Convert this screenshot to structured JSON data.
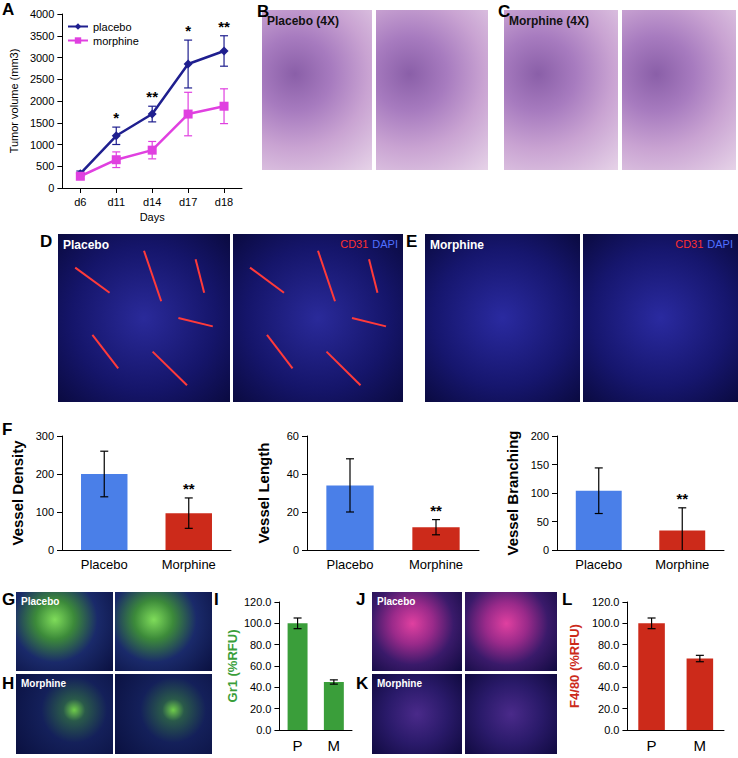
{
  "chart_data": [
    {
      "panel": "A",
      "type": "line",
      "xlabel": "Days",
      "ylabel": "Tumor volume (mm3)",
      "categories": [
        "d6",
        "d11",
        "d14",
        "d17",
        "d18"
      ],
      "series": [
        {
          "name": "placebo",
          "color": "#1f1f8f",
          "marker": "diamond",
          "values": [
            330,
            1200,
            1700,
            2850,
            3150
          ],
          "errors": [
            60,
            200,
            180,
            550,
            350
          ]
        },
        {
          "name": "morphine",
          "color": "#e040e0",
          "marker": "square",
          "values": [
            270,
            650,
            870,
            1700,
            1880
          ],
          "errors": [
            60,
            180,
            200,
            500,
            400
          ]
        }
      ],
      "annotations": [
        {
          "category": "d11",
          "text": "*"
        },
        {
          "category": "d14",
          "text": "**"
        },
        {
          "category": "d17",
          "text": "*"
        },
        {
          "category": "d18",
          "text": "**"
        }
      ],
      "ylim": [
        0,
        4000
      ],
      "yticks": [
        0,
        500,
        1000,
        1500,
        2000,
        2500,
        3000,
        3500,
        4000
      ],
      "legend": "upper left",
      "grid": false
    },
    {
      "panel": "F",
      "type": "bar",
      "ylabel": "Vessel Density",
      "categories": [
        "Placebo",
        "Morphine"
      ],
      "values": [
        200,
        97
      ],
      "errors": [
        60,
        40
      ],
      "colors": [
        "#4a7fe8",
        "#cc2a1a"
      ],
      "annotations": [
        {
          "category": "Morphine",
          "text": "**"
        }
      ],
      "ylim": [
        0,
        300
      ],
      "yticks": [
        0,
        100,
        200,
        300
      ],
      "grid": false
    },
    {
      "type": "bar",
      "ylabel": "Vessel Length",
      "categories": [
        "Placebo",
        "Morphine"
      ],
      "values": [
        34,
        12
      ],
      "errors": [
        14,
        4
      ],
      "colors": [
        "#4a7fe8",
        "#cc2a1a"
      ],
      "annotations": [
        {
          "category": "Morphine",
          "text": "**"
        }
      ],
      "ylim": [
        0,
        60
      ],
      "yticks": [
        0,
        20,
        40,
        60
      ],
      "grid": false
    },
    {
      "type": "bar",
      "ylabel": "Vessel Branching",
      "categories": [
        "Placebo",
        "Morphine"
      ],
      "values": [
        104,
        34
      ],
      "errors": [
        40,
        40
      ],
      "colors": [
        "#4a7fe8",
        "#cc2a1a"
      ],
      "annotations": [
        {
          "category": "Morphine",
          "text": "**"
        }
      ],
      "ylim": [
        0,
        200
      ],
      "yticks": [
        0,
        50,
        100,
        150,
        200
      ],
      "grid": false
    },
    {
      "panel": "I",
      "type": "bar",
      "ylabel": "Gr1 (%RFU)",
      "categories": [
        "P",
        "M"
      ],
      "values": [
        100,
        45
      ],
      "errors": [
        5,
        2
      ],
      "color": "#3a9e3a",
      "ylim": [
        0,
        120
      ],
      "yticks": [
        {
          "value": 0,
          "label": "0.0"
        },
        {
          "value": 20,
          "label": "20.0"
        },
        {
          "value": 40,
          "label": "40.0"
        },
        {
          "value": 60,
          "label": "60.0"
        },
        {
          "value": 80,
          "label": "80.0"
        },
        {
          "value": 100,
          "label": "100.0"
        },
        {
          "value": 120,
          "label": "120.0"
        }
      ],
      "grid": false
    },
    {
      "panel": "L",
      "type": "bar",
      "ylabel": "F4/80 (%RFU)",
      "categories": [
        "P",
        "M"
      ],
      "values": [
        100,
        67
      ],
      "errors": [
        5,
        3
      ],
      "color": "#cc2a1a",
      "ylim": [
        0,
        120
      ],
      "yticks": [
        {
          "value": 0,
          "label": "0.0"
        },
        {
          "value": 20,
          "label": "20.0"
        },
        {
          "value": 40,
          "label": "40.0"
        },
        {
          "value": 60,
          "label": "60.0"
        },
        {
          "value": 80,
          "label": "80.0"
        },
        {
          "value": 100,
          "label": "100.0"
        },
        {
          "value": 120,
          "label": "120.0"
        }
      ],
      "grid": false
    }
  ],
  "images": [
    {
      "panel": "B",
      "label": "Placebo (4X)",
      "style": "histology"
    },
    {
      "panel": "C",
      "label": "Morphine (4X)",
      "style": "histology"
    },
    {
      "panel": "D",
      "label": "Placebo",
      "style": "cd31",
      "stains": [
        {
          "text": "CD31",
          "color": "#ff3030"
        },
        {
          "text": "DAPI",
          "color": "#5070ff"
        }
      ]
    },
    {
      "panel": "E",
      "label": "Morphine",
      "style": "dapi",
      "stains": [
        {
          "text": "CD31",
          "color": "#ff3030"
        },
        {
          "text": "DAPI",
          "color": "#5070ff"
        }
      ]
    },
    {
      "panel": "G",
      "label": "Placebo",
      "style": "gr1"
    },
    {
      "panel": "H",
      "label": "Morphine",
      "style": "gr1low"
    },
    {
      "panel": "J",
      "label": "Placebo",
      "style": "f480"
    },
    {
      "panel": "K",
      "label": "Morphine",
      "style": "f480low"
    }
  ]
}
